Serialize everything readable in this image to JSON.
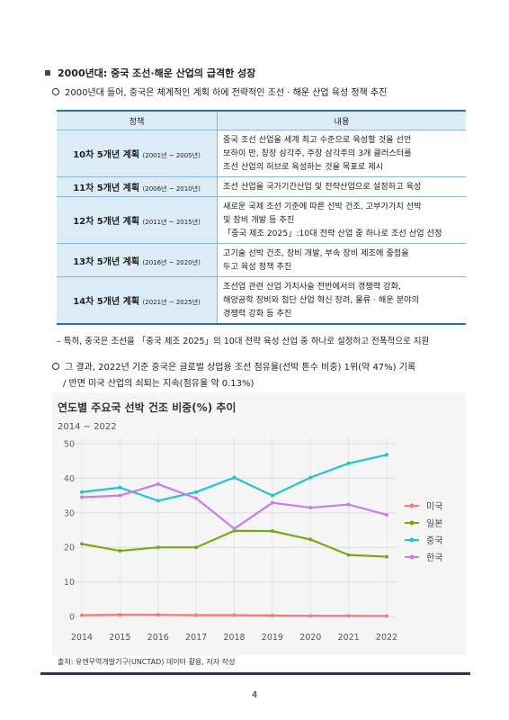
{
  "section_heading": "2000년대: 중국 조선·해운 산업의 급격한 성장",
  "intro_bullet": "2000년대 들어, 중국은 체계적인 계획 하에 전략적인 조선 · 해운 산업 육성 정책 추진",
  "table": {
    "headers": [
      "정책",
      "내용"
    ],
    "rows": [
      {
        "plan": "10차 5개년 계획",
        "years": "(2001년 ~ 2005년)",
        "content_lines": [
          "중국 조선 산업을 세계 최고 수준으로 육성할 것을 선언",
          "보하이 만, 창장 삼각주, 주장 삼각주의 3개 클러스터를",
          "조선 산업의 허브로 육성하는 것을 목표로 제시"
        ]
      },
      {
        "plan": "11차 5개년 계획",
        "years": "(2006년 ~ 2010년)",
        "content_lines": [
          "조선 산업을 국가기간산업 및 전략산업으로 설정하고 육성"
        ]
      },
      {
        "plan": "12차 5개년 계획",
        "years": "(2011년 ~ 2015년)",
        "content_lines": [
          "새로운 국제 조선 기준에 따른 선박 건조, 고부가가치 선박",
          "및 장비 개발 등 추진",
          "「중국 제조 2025」:10대 전략 산업 중 하나로 조선 산업 선정"
        ]
      },
      {
        "plan": "13차 5개년 계획",
        "years": "(2016년 ~ 2020년)",
        "content_lines": [
          "고기술 선박 건조, 장비 개발, 부속 장비 제조에 중점을",
          "두고 육성 정책 추진"
        ]
      },
      {
        "plan": "14차 5개년 계획",
        "years": "(2021년 ~ 2025년)",
        "content_lines": [
          "조선업 관련 산업 가치사슬 전반에서의 경쟁력 강화,",
          "해양공학 장비와 첨단 산업 혁신 장려, 물류 · 해운 분야의",
          "경쟁력 강화 등 추진"
        ]
      }
    ]
  },
  "note": "– 특히, 중국은 조선을 「중국 제조 2025」의 10대 전략 육성 산업 중 하나로 설정하고 전폭적으로 지원",
  "result_line1": "그 결과, 2022년 기준 중국은 글로벌 상업용 조선 점유율(선박 톤수 비중) 1위(약 47%) 기록",
  "result_line2": "/ 반면 미국 산업의 쇠퇴는 지속(점유율 약 0.13%)",
  "chart_data": {
    "type": "line",
    "title": "연도별 주요국 선박 건조 비중(%) 추이",
    "subtitle": "2014 ~ 2022",
    "x": [
      2014,
      2015,
      2016,
      2017,
      2018,
      2019,
      2020,
      2021,
      2022
    ],
    "ylim": [
      0,
      50
    ],
    "yticks": [
      0,
      10,
      20,
      30,
      40,
      50
    ],
    "grid": true,
    "legend_position": "right",
    "series": [
      {
        "name": "미국",
        "color": "#f07c7c",
        "values": [
          0.4,
          0.5,
          0.5,
          0.4,
          0.4,
          0.3,
          0.2,
          0.2,
          0.13
        ]
      },
      {
        "name": "일본",
        "color": "#79a812",
        "values": [
          21.0,
          19.0,
          20.0,
          20.0,
          24.8,
          24.7,
          22.3,
          17.8,
          17.3
        ]
      },
      {
        "name": "중국",
        "color": "#22c5cc",
        "values": [
          36.0,
          37.3,
          33.5,
          36.0,
          40.2,
          35.0,
          40.2,
          44.3,
          46.8
        ]
      },
      {
        "name": "한국",
        "color": "#c77ee8",
        "values": [
          34.5,
          35.0,
          38.3,
          34.2,
          25.4,
          32.9,
          31.5,
          32.4,
          29.4
        ]
      }
    ]
  },
  "source": "출처: 유엔무역개발기구(UNCTAD) 데이터 활용, 저자 작성",
  "page_number": "4"
}
